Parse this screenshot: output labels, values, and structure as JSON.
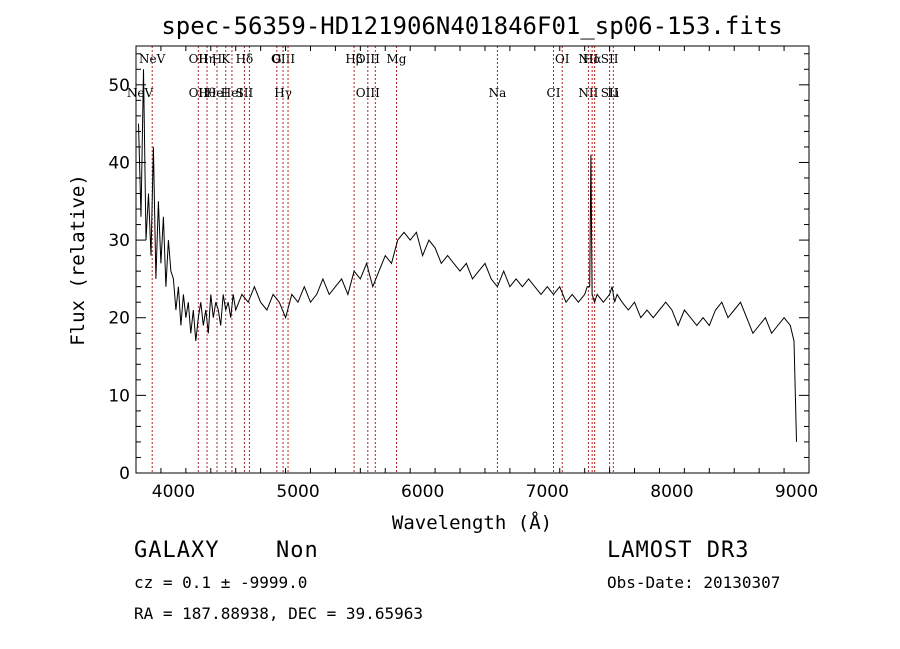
{
  "footer": {
    "object_class": "GALAXY",
    "subclass": "Non",
    "cz_line": "cz = 0.1 ± -9999.0",
    "radec_line": "RA = 187.88938, DEC =  39.65963",
    "survey": "LAMOST DR3",
    "obs_date": "Obs-Date: 20130307"
  },
  "chart_data": {
    "type": "line",
    "title": "spec-56359-HD121906N401846F01_sp06-153.fits",
    "xlabel": "Wavelength (Å)",
    "ylabel": "Flux (relative)",
    "xlim": [
      3700,
      9100
    ],
    "ylim": [
      0,
      55
    ],
    "xticks": [
      4000,
      5000,
      6000,
      7000,
      8000,
      9000
    ],
    "yticks": [
      0,
      10,
      20,
      30,
      40,
      50
    ],
    "grid": false,
    "line_color": "#000000",
    "marker_color": "#b22222",
    "series": [
      {
        "x": [
          3720,
          3740,
          3760,
          3780,
          3800,
          3820,
          3840,
          3860,
          3880,
          3900,
          3920,
          3940,
          3960,
          3980,
          4000,
          4020,
          4040,
          4060,
          4080,
          4100,
          4120,
          4140,
          4160,
          4180,
          4200,
          4220,
          4240,
          4260,
          4280,
          4300,
          4320,
          4340,
          4360,
          4380,
          4400,
          4420,
          4440,
          4460,
          4480,
          4500,
          4550,
          4600,
          4650,
          4700,
          4750,
          4800,
          4850,
          4900,
          4950,
          5000,
          5050,
          5100,
          5150,
          5200,
          5250,
          5300,
          5350,
          5400,
          5450,
          5500,
          5550,
          5600,
          5650,
          5700,
          5750,
          5800,
          5850,
          5900,
          5950,
          6000,
          6050,
          6100,
          6150,
          6200,
          6250,
          6300,
          6350,
          6400,
          6450,
          6500,
          6550,
          6600,
          6650,
          6700,
          6750,
          6800,
          6850,
          6900,
          6950,
          7000,
          7050,
          7100,
          7150,
          7200,
          7250,
          7300,
          7320,
          7340,
          7350,
          7360,
          7380,
          7400,
          7450,
          7500,
          7520,
          7540,
          7560,
          7600,
          7650,
          7700,
          7750,
          7800,
          7850,
          7900,
          7950,
          8000,
          8050,
          8100,
          8150,
          8200,
          8250,
          8300,
          8350,
          8400,
          8450,
          8500,
          8550,
          8600,
          8650,
          8700,
          8750,
          8800,
          8850,
          8900,
          8950,
          8980,
          9000
        ],
        "y": [
          45,
          33,
          52,
          30,
          36,
          28,
          42,
          25,
          35,
          27,
          33,
          24,
          30,
          26,
          25,
          21,
          24,
          19,
          23,
          20,
          22,
          18,
          21,
          17,
          20,
          22,
          19,
          21,
          18,
          23,
          20,
          22,
          21,
          19,
          23,
          21,
          22,
          20,
          23,
          21,
          23,
          22,
          24,
          22,
          21,
          23,
          22,
          20,
          23,
          22,
          24,
          22,
          23,
          25,
          23,
          24,
          25,
          23,
          26,
          25,
          27,
          24,
          26,
          28,
          27,
          30,
          31,
          30,
          31,
          28,
          30,
          29,
          27,
          28,
          27,
          26,
          27,
          25,
          26,
          27,
          25,
          24,
          26,
          24,
          25,
          24,
          25,
          24,
          23,
          24,
          23,
          24,
          22,
          23,
          22,
          23,
          24,
          24,
          41,
          23,
          22,
          23,
          22,
          23,
          24,
          22,
          23,
          22,
          21,
          22,
          20,
          21,
          20,
          21,
          22,
          21,
          19,
          21,
          20,
          19,
          20,
          19,
          21,
          22,
          20,
          21,
          22,
          20,
          18,
          19,
          20,
          18,
          19,
          20,
          19,
          17,
          4
        ]
      }
    ],
    "line_markers": [
      {
        "wl": 3426,
        "top": "",
        "bottom": "NeV"
      },
      {
        "wl": 3830,
        "top": "NeV",
        "bottom": ""
      },
      {
        "wl": 4200,
        "top": "OII",
        "bottom": "OII"
      },
      {
        "wl": 4270,
        "top": "Hη",
        "bottom": "Hθ"
      },
      {
        "wl": 4350,
        "top": "H",
        "bottom": "HeI"
      },
      {
        "wl": 4420,
        "top": "K",
        "bottom": ""
      },
      {
        "wl": 4470,
        "top": "",
        "bottom": "HeI"
      },
      {
        "wl": 4570,
        "top": "Hδ",
        "bottom": "SII"
      },
      {
        "wl": 4610,
        "top": "",
        "bottom": ""
      },
      {
        "wl": 4830,
        "top": "G",
        "bottom": ""
      },
      {
        "wl": 4880,
        "top": "OIII",
        "bottom": "Hγ"
      },
      {
        "wl": 4920,
        "top": "",
        "bottom": ""
      },
      {
        "wl": 5450,
        "top": "Hβ",
        "bottom": ""
      },
      {
        "wl": 5560,
        "top": "OIII",
        "bottom": "OIII"
      },
      {
        "wl": 5620,
        "top": "",
        "bottom": ""
      },
      {
        "wl": 5790,
        "top": "Mg",
        "bottom": ""
      },
      {
        "wl": 6600,
        "top": "",
        "bottom": "Na"
      },
      {
        "wl": 7050,
        "top": "",
        "bottom": "CI"
      },
      {
        "wl": 7120,
        "top": "OI",
        "bottom": ""
      },
      {
        "wl": 7330,
        "top": "NII",
        "bottom": "NII"
      },
      {
        "wl": 7360,
        "top": "Hα",
        "bottom": ""
      },
      {
        "wl": 7380,
        "top": "",
        "bottom": ""
      },
      {
        "wl": 7500,
        "top": "SII",
        "bottom": "SII"
      },
      {
        "wl": 7530,
        "top": "",
        "bottom": "Li"
      }
    ]
  }
}
